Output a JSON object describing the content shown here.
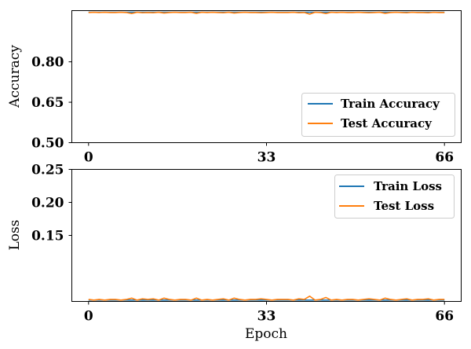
{
  "chart_data": [
    {
      "type": "line",
      "ylabel": "Accuracy",
      "xlabel": "",
      "xlim": [
        -3.1,
        69.1
      ],
      "ylim": [
        0.5,
        0.99
      ],
      "xticks": [
        "0",
        "33",
        "66"
      ],
      "yticks": [
        "0.50",
        "0.65",
        "0.80"
      ],
      "legend": {
        "placement": "lower-right",
        "entries": [
          "Train Accuracy",
          "Test Accuracy"
        ]
      },
      "grid": false,
      "series": [
        {
          "name": "Train Accuracy",
          "color": "#1f77b4",
          "x": [
            0,
            1,
            2,
            3,
            4,
            5,
            6,
            7,
            8,
            9,
            10,
            11,
            12,
            13,
            14,
            15,
            16,
            17,
            18,
            19,
            20,
            21,
            22,
            23,
            24,
            25,
            26,
            27,
            28,
            29,
            30,
            31,
            32,
            33,
            34,
            35,
            36,
            37,
            38,
            39,
            40,
            41,
            42,
            43,
            44,
            45,
            46,
            47,
            48,
            49,
            50,
            51,
            52,
            53,
            54,
            55,
            56,
            57,
            58,
            59,
            60,
            61,
            62,
            63,
            64,
            65,
            66
          ],
          "values": [
            0.984,
            0.984,
            0.984,
            0.984,
            0.984,
            0.984,
            0.984,
            0.984,
            0.984,
            0.984,
            0.984,
            0.984,
            0.984,
            0.984,
            0.984,
            0.984,
            0.984,
            0.984,
            0.984,
            0.984,
            0.984,
            0.984,
            0.984,
            0.984,
            0.984,
            0.984,
            0.984,
            0.984,
            0.984,
            0.984,
            0.984,
            0.984,
            0.984,
            0.984,
            0.984,
            0.984,
            0.984,
            0.984,
            0.984,
            0.984,
            0.984,
            0.984,
            0.984,
            0.984,
            0.984,
            0.984,
            0.984,
            0.984,
            0.984,
            0.984,
            0.984,
            0.984,
            0.984,
            0.984,
            0.984,
            0.984,
            0.984,
            0.984,
            0.984,
            0.984,
            0.984,
            0.984,
            0.984,
            0.984,
            0.984,
            0.984,
            0.984
          ]
        },
        {
          "name": "Test Accuracy",
          "color": "#ff7f0e",
          "x": [
            0,
            1,
            2,
            3,
            4,
            5,
            6,
            7,
            8,
            9,
            10,
            11,
            12,
            13,
            14,
            15,
            16,
            17,
            18,
            19,
            20,
            21,
            22,
            23,
            24,
            25,
            26,
            27,
            28,
            29,
            30,
            31,
            32,
            33,
            34,
            35,
            36,
            37,
            38,
            39,
            40,
            41,
            42,
            43,
            44,
            45,
            46,
            47,
            48,
            49,
            50,
            51,
            52,
            53,
            54,
            55,
            56,
            57,
            58,
            59,
            60,
            61,
            62,
            63,
            64,
            65,
            66
          ],
          "values": [
            0.983,
            0.984,
            0.983,
            0.984,
            0.983,
            0.983,
            0.984,
            0.983,
            0.979,
            0.984,
            0.982,
            0.983,
            0.982,
            0.984,
            0.981,
            0.983,
            0.984,
            0.983,
            0.983,
            0.984,
            0.98,
            0.984,
            0.983,
            0.984,
            0.983,
            0.982,
            0.984,
            0.981,
            0.983,
            0.984,
            0.983,
            0.983,
            0.982,
            0.983,
            0.984,
            0.983,
            0.983,
            0.983,
            0.984,
            0.982,
            0.983,
            0.977,
            0.984,
            0.983,
            0.979,
            0.984,
            0.983,
            0.984,
            0.983,
            0.983,
            0.984,
            0.983,
            0.982,
            0.983,
            0.984,
            0.98,
            0.983,
            0.984,
            0.983,
            0.982,
            0.984,
            0.983,
            0.983,
            0.982,
            0.984,
            0.983,
            0.983
          ]
        }
      ]
    },
    {
      "type": "line",
      "ylabel": "Loss",
      "xlabel": "Epoch",
      "xlim": [
        -3.1,
        69.1
      ],
      "ylim": [
        0.05,
        0.25
      ],
      "xticks": [
        "0",
        "33",
        "66"
      ],
      "yticks": [
        "0.15",
        "0.20",
        "0.25"
      ],
      "legend": {
        "placement": "upper-right",
        "entries": [
          "Train Loss",
          "Test Loss"
        ]
      },
      "grid": false,
      "series": [
        {
          "name": "Train Loss",
          "color": "#1f77b4",
          "x": [
            0,
            1,
            2,
            3,
            4,
            5,
            6,
            7,
            8,
            9,
            10,
            11,
            12,
            13,
            14,
            15,
            16,
            17,
            18,
            19,
            20,
            21,
            22,
            23,
            24,
            25,
            26,
            27,
            28,
            29,
            30,
            31,
            32,
            33,
            34,
            35,
            36,
            37,
            38,
            39,
            40,
            41,
            42,
            43,
            44,
            45,
            46,
            47,
            48,
            49,
            50,
            51,
            52,
            53,
            54,
            55,
            56,
            57,
            58,
            59,
            60,
            61,
            62,
            63,
            64,
            65,
            66
          ],
          "values": [
            0.052,
            0.052,
            0.052,
            0.052,
            0.052,
            0.052,
            0.052,
            0.052,
            0.052,
            0.052,
            0.052,
            0.052,
            0.052,
            0.052,
            0.052,
            0.052,
            0.052,
            0.052,
            0.052,
            0.052,
            0.052,
            0.052,
            0.052,
            0.052,
            0.052,
            0.052,
            0.052,
            0.052,
            0.052,
            0.052,
            0.052,
            0.052,
            0.052,
            0.052,
            0.052,
            0.052,
            0.052,
            0.052,
            0.052,
            0.052,
            0.052,
            0.052,
            0.052,
            0.052,
            0.052,
            0.052,
            0.052,
            0.052,
            0.052,
            0.052,
            0.052,
            0.052,
            0.052,
            0.052,
            0.052,
            0.052,
            0.052,
            0.052,
            0.052,
            0.052,
            0.052,
            0.052,
            0.052,
            0.052,
            0.052,
            0.052,
            0.052
          ]
        },
        {
          "name": "Test Loss",
          "color": "#ff7f0e",
          "x": [
            0,
            1,
            2,
            3,
            4,
            5,
            6,
            7,
            8,
            9,
            10,
            11,
            12,
            13,
            14,
            15,
            16,
            17,
            18,
            19,
            20,
            21,
            22,
            23,
            24,
            25,
            26,
            27,
            28,
            29,
            30,
            31,
            32,
            33,
            34,
            35,
            36,
            37,
            38,
            39,
            40,
            41,
            42,
            43,
            44,
            45,
            46,
            47,
            48,
            49,
            50,
            51,
            52,
            53,
            54,
            55,
            56,
            57,
            58,
            59,
            60,
            61,
            62,
            63,
            64,
            65,
            66
          ],
          "values": [
            0.053,
            0.052,
            0.053,
            0.052,
            0.053,
            0.053,
            0.052,
            0.053,
            0.055,
            0.052,
            0.054,
            0.053,
            0.054,
            0.052,
            0.055,
            0.053,
            0.052,
            0.053,
            0.053,
            0.052,
            0.055,
            0.052,
            0.053,
            0.052,
            0.053,
            0.054,
            0.052,
            0.055,
            0.053,
            0.052,
            0.053,
            0.053,
            0.054,
            0.053,
            0.052,
            0.053,
            0.053,
            0.053,
            0.052,
            0.054,
            0.053,
            0.058,
            0.052,
            0.053,
            0.056,
            0.052,
            0.053,
            0.052,
            0.053,
            0.053,
            0.052,
            0.053,
            0.054,
            0.053,
            0.052,
            0.055,
            0.053,
            0.052,
            0.053,
            0.054,
            0.052,
            0.053,
            0.053,
            0.054,
            0.052,
            0.053,
            0.053
          ]
        }
      ]
    }
  ]
}
